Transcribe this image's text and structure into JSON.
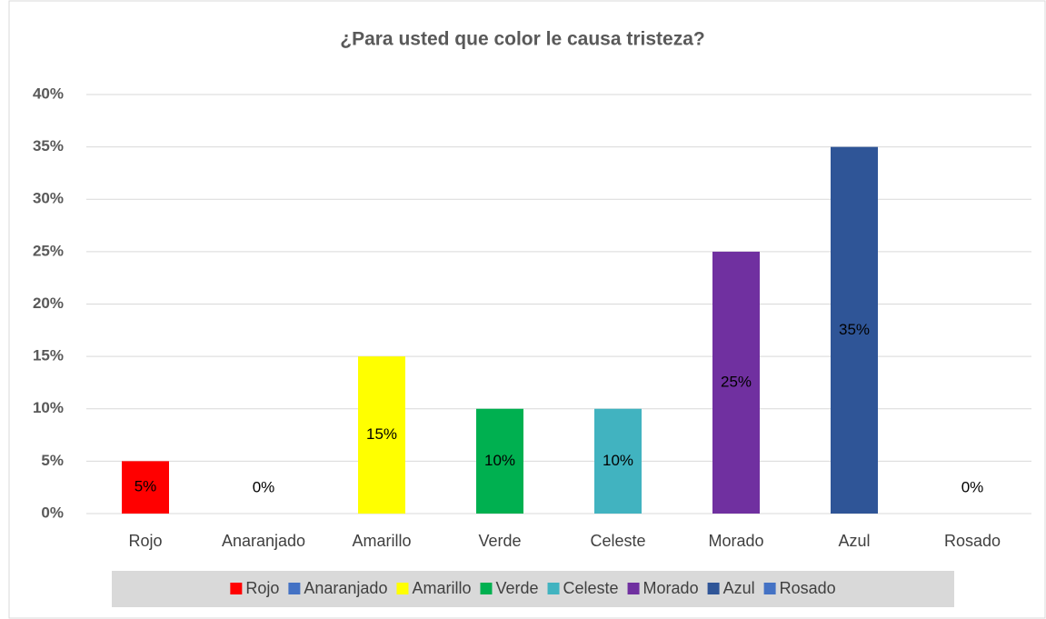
{
  "chart_data": {
    "type": "bar",
    "title": "¿Para usted que color le causa tristeza?",
    "categories": [
      "Rojo",
      "Anaranjado",
      "Amarillo",
      "Verde",
      "Celeste",
      "Morado",
      "Azul",
      "Rosado"
    ],
    "values": [
      5,
      0,
      15,
      10,
      10,
      25,
      35,
      0
    ],
    "value_labels": [
      "5%",
      "0%",
      "15%",
      "10%",
      "10%",
      "25%",
      "35%",
      "0%"
    ],
    "colors": [
      "#ff0000",
      "#4472c4",
      "#ffff00",
      "#00b050",
      "#41b3c0",
      "#7030a0",
      "#2f5597",
      "#4472c4"
    ],
    "ylim": [
      0,
      40
    ],
    "yticks": [
      {
        "value": 0,
        "label": "0%"
      },
      {
        "value": 5,
        "label": "5%"
      },
      {
        "value": 10,
        "label": "10%"
      },
      {
        "value": 15,
        "label": "15%"
      },
      {
        "value": 20,
        "label": "20%"
      },
      {
        "value": 25,
        "label": "25%"
      },
      {
        "value": 30,
        "label": "30%"
      },
      {
        "value": 35,
        "label": "35%"
      },
      {
        "value": 40,
        "label": "40%"
      }
    ],
    "grid": true,
    "legend": "bottom"
  }
}
